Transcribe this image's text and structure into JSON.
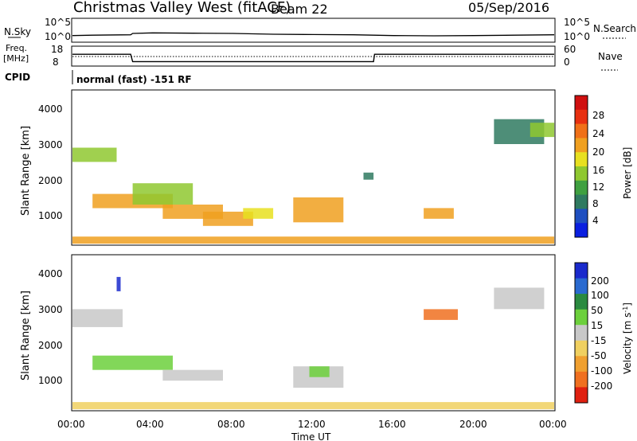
{
  "header": {
    "station": "Christmas Valley West (fitACF)",
    "beam": "Beam 22",
    "date": "05/Sep/2016"
  },
  "noise_panel": {
    "left_label": "N.Sky",
    "left_ticks": [
      "10^5",
      "10^0"
    ],
    "right_label": "N.Search",
    "right_ticks": [
      "10^5",
      "10^0"
    ]
  },
  "freq_panel": {
    "left_label": "Freq.",
    "left_unit": "[MHz]",
    "left_ticks": [
      "18",
      "8"
    ],
    "right_label": "Nave",
    "right_ticks": [
      "60",
      "0"
    ]
  },
  "cpid": {
    "label": "CPID",
    "text": "normal (fast) -151 RF"
  },
  "x_axis": {
    "title": "Time UT",
    "ticks": [
      "00:00",
      "04:00",
      "08:00",
      "12:00",
      "16:00",
      "20:00",
      "00:00"
    ]
  },
  "power_panel": {
    "y_title": "Slant Range [km]",
    "y_ticks": [
      "1000",
      "2000",
      "3000",
      "4000"
    ],
    "cbar_title": "Power [dB]",
    "cbar_ticks": [
      "4",
      "8",
      "12",
      "16",
      "20",
      "24",
      "28"
    ],
    "cbar_colors": [
      "#0a1fe0",
      "#1f4fc0",
      "#2f7a60",
      "#3fa040",
      "#8fc830",
      "#e8e020",
      "#f0a020",
      "#f07018",
      "#e83010",
      "#d01010"
    ]
  },
  "velocity_panel": {
    "y_title": "Slant Range [km]",
    "y_ticks": [
      "1000",
      "2000",
      "3000",
      "4000"
    ],
    "cbar_title": "Velocity [m s",
    "cbar_title_sup": "-1",
    "cbar_title_end": "]",
    "cbar_ticks": [
      "200",
      "100",
      "50",
      "15",
      "-15",
      "-50",
      "-100",
      "-200"
    ],
    "cbar_colors": [
      "#1a2acc",
      "#2a6ad0",
      "#2a8a40",
      "#6cd03c",
      "#c8c8c8",
      "#f0d060",
      "#f0a030",
      "#f07020",
      "#e02010"
    ]
  },
  "chart_data": [
    {
      "type": "line",
      "name": "noise",
      "x_range_hours": [
        0,
        24
      ],
      "y_scale": "log",
      "series": [
        {
          "x": [
            0,
            1,
            2.9,
            3,
            4,
            6,
            8,
            10,
            12,
            14,
            15,
            16,
            18,
            20,
            22,
            24
          ],
          "y": [
            20,
            25,
            30,
            60,
            80,
            70,
            60,
            40,
            35,
            30,
            25,
            20,
            18,
            20,
            25,
            30
          ]
        }
      ]
    },
    {
      "type": "line",
      "name": "frequency",
      "x_range_hours": [
        0,
        24
      ],
      "ylim": [
        8,
        18
      ],
      "series": [
        {
          "x": [
            0,
            2.9,
            3,
            15,
            15.05,
            24
          ],
          "y": [
            14,
            14,
            10,
            10,
            14,
            14
          ]
        }
      ]
    },
    {
      "type": "heatmap",
      "name": "power",
      "x_range_hours": [
        0,
        24
      ],
      "ylim": [
        180,
        4500
      ],
      "zlim": [
        0,
        30
      ],
      "cells": [
        {
          "t": [
            0,
            2.2
          ],
          "r": [
            2500,
            2900
          ],
          "z": 12
        },
        {
          "t": [
            1,
            5
          ],
          "r": [
            1200,
            1600
          ],
          "z": 18
        },
        {
          "t": [
            3,
            6
          ],
          "r": [
            1300,
            1900
          ],
          "z": 14
        },
        {
          "t": [
            4.5,
            7.5
          ],
          "r": [
            900,
            1300
          ],
          "z": 20
        },
        {
          "t": [
            6.5,
            9
          ],
          "r": [
            700,
            1100
          ],
          "z": 18
        },
        {
          "t": [
            8.5,
            10
          ],
          "r": [
            900,
            1200
          ],
          "z": 16
        },
        {
          "t": [
            11,
            13.5
          ],
          "r": [
            800,
            1500
          ],
          "z": 18
        },
        {
          "t": [
            14.5,
            15
          ],
          "r": [
            2000,
            2200
          ],
          "z": 6
        },
        {
          "t": [
            17.5,
            19
          ],
          "r": [
            900,
            1200
          ],
          "z": 20
        },
        {
          "t": [
            21,
            23.5
          ],
          "r": [
            3000,
            3700
          ],
          "z": 8
        },
        {
          "t": [
            22.8,
            24
          ],
          "r": [
            3200,
            3600
          ],
          "z": 12
        },
        {
          "t": [
            0,
            24
          ],
          "r": [
            200,
            400
          ],
          "z": 20
        }
      ]
    },
    {
      "type": "heatmap",
      "name": "velocity",
      "x_range_hours": [
        0,
        24
      ],
      "ylim": [
        180,
        4500
      ],
      "zlim": [
        -200,
        200
      ],
      "cells": [
        {
          "t": [
            0,
            2.5
          ],
          "r": [
            2500,
            3000
          ],
          "z": 0
        },
        {
          "t": [
            1,
            5
          ],
          "r": [
            1300,
            1700
          ],
          "z": 40
        },
        {
          "t": [
            2.2,
            2.4
          ],
          "r": [
            3500,
            3900
          ],
          "z": 200
        },
        {
          "t": [
            4.5,
            7.5
          ],
          "r": [
            1000,
            1300
          ],
          "z": 0
        },
        {
          "t": [
            11,
            13.5
          ],
          "r": [
            800,
            1400
          ],
          "z": 0
        },
        {
          "t": [
            11.8,
            12.8
          ],
          "r": [
            1100,
            1400
          ],
          "z": 40
        },
        {
          "t": [
            17.5,
            19.2
          ],
          "r": [
            2700,
            3000
          ],
          "z": -150
        },
        {
          "t": [
            21,
            23.5
          ],
          "r": [
            3000,
            3600
          ],
          "z": 0
        },
        {
          "t": [
            0,
            24
          ],
          "r": [
            200,
            400
          ],
          "z": -30
        }
      ]
    }
  ]
}
